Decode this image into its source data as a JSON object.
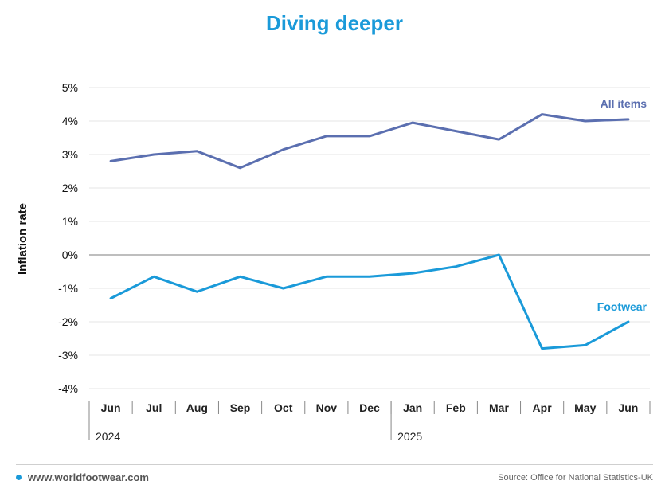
{
  "chart_data": {
    "type": "line",
    "title": "Diving deeper",
    "ylabel": "Inflation rate",
    "ylim": [
      -4,
      5
    ],
    "yticks": [
      5,
      4,
      3,
      2,
      1,
      0,
      -1,
      -2,
      -3,
      -4
    ],
    "ytick_suffix": "%",
    "categories": [
      "Jun",
      "Jul",
      "Aug",
      "Sep",
      "Oct",
      "Nov",
      "Dec",
      "Jan",
      "Feb",
      "Mar",
      "Apr",
      "May",
      "Jun"
    ],
    "year_labels": [
      {
        "label": "2024",
        "start_index": 0
      },
      {
        "label": "2025",
        "start_index": 7
      }
    ],
    "grid": "horizontal",
    "series": [
      {
        "name": "All items",
        "color": "#5b6fb0",
        "values": [
          2.8,
          3.0,
          3.1,
          2.6,
          3.15,
          3.55,
          3.55,
          3.95,
          3.7,
          3.45,
          4.2,
          4.0,
          4.05
        ]
      },
      {
        "name": "Footwear",
        "color": "#1a9ad9",
        "values": [
          -1.3,
          -0.65,
          -1.1,
          -0.65,
          -1.0,
          -0.65,
          -0.65,
          -0.55,
          -0.35,
          0.0,
          -2.8,
          -2.7,
          -2.0
        ]
      }
    ]
  },
  "footer": {
    "website": "www.worldfootwear.com",
    "source": "Source: Office for National Statistics-UK"
  }
}
